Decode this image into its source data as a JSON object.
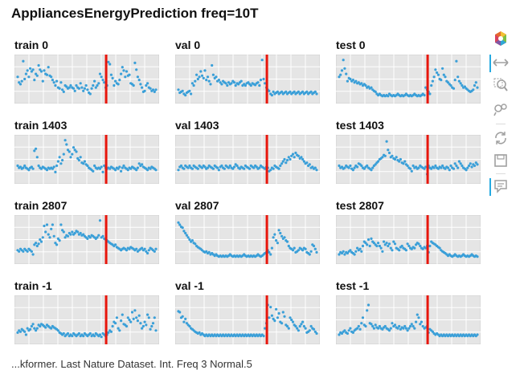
{
  "title": "AppliancesEnergyPrediction freq=10T",
  "caption": "...kformer. Last Nature Dataset. Int. Freq 3 Normal.5",
  "colors": {
    "plot_background": "#e5e5e5",
    "grid": "#ffffff",
    "points": "#3a9fd8",
    "divider": "#e8160c",
    "toolbar_icon": "#a0a0a0",
    "toolbar_active": "#26aae1"
  },
  "toolbar": {
    "tools": [
      {
        "name": "bokeh-logo-icon",
        "active": false
      },
      {
        "name": "pan-icon",
        "active": true
      },
      {
        "name": "box-zoom-icon",
        "active": false
      },
      {
        "name": "wheel-zoom-icon",
        "active": false
      },
      {
        "name": "reset-icon",
        "active": false
      },
      {
        "name": "save-icon",
        "active": false
      },
      {
        "name": "hover-icon",
        "active": true
      }
    ]
  },
  "chart_data": [
    {
      "type": "scatter",
      "title": "train 0",
      "x_min": 0,
      "x_max": 100,
      "y_min": 0,
      "y_max": 1,
      "split_x": 64,
      "series_points": [
        0.55,
        0.42,
        0.38,
        0.45,
        0.92,
        0.5,
        0.62,
        0.7,
        0.55,
        0.75,
        0.68,
        0.72,
        0.48,
        0.62,
        0.58,
        0.82,
        0.72,
        0.68,
        0.45,
        0.7,
        0.62,
        0.6,
        0.78,
        0.58,
        0.55,
        0.48,
        0.42,
        0.35,
        0.45,
        0.3,
        0.28,
        0.42,
        0.25,
        0.2,
        0.35,
        0.32,
        0.28,
        0.3,
        0.35,
        0.3,
        0.28,
        0.22,
        0.35,
        0.3,
        0.28,
        0.4,
        0.3,
        0.22,
        0.28,
        0.35,
        0.25,
        0.18,
        0.15,
        0.28,
        0.35,
        0.45,
        0.3,
        0.35,
        0.4,
        0.62,
        0.55,
        0.48,
        0.42,
        0.3,
        0.35,
        0.9,
        0.85,
        0.6,
        0.52,
        0.35,
        0.45,
        0.4,
        0.38,
        0.48,
        0.62,
        0.78,
        0.7,
        0.55,
        0.68,
        0.58,
        0.6,
        0.4,
        0.38,
        0.35,
        0.88,
        0.72,
        0.55,
        0.48,
        0.38,
        0.3,
        0.2,
        0.22,
        0.35,
        0.4,
        0.3,
        0.28,
        0.22,
        0.25,
        0.2,
        0.25
      ]
    },
    {
      "type": "scatter",
      "title": "val 0",
      "x_min": 0,
      "x_max": 100,
      "y_min": 0,
      "y_max": 1,
      "split_x": 64,
      "series_points": [
        0.25,
        0.18,
        0.2,
        0.22,
        0.15,
        0.12,
        0.18,
        0.2,
        0.22,
        0.15,
        0.4,
        0.35,
        0.45,
        0.6,
        0.5,
        0.55,
        0.68,
        0.58,
        0.52,
        0.7,
        0.48,
        0.55,
        0.45,
        0.38,
        0.82,
        0.6,
        0.52,
        0.55,
        0.45,
        0.48,
        0.42,
        0.38,
        0.45,
        0.42,
        0.4,
        0.35,
        0.42,
        0.38,
        0.4,
        0.45,
        0.42,
        0.35,
        0.4,
        0.38,
        0.42,
        0.45,
        0.35,
        0.38,
        0.35,
        0.4,
        0.42,
        0.38,
        0.35,
        0.4,
        0.38,
        0.36,
        0.4,
        0.42,
        0.35,
        0.48,
        0.95,
        0.5,
        0.4,
        0.3,
        0.25,
        0.22,
        0.15,
        0.12,
        0.2,
        0.15,
        0.18,
        0.2,
        0.15,
        0.18,
        0.2,
        0.15,
        0.18,
        0.2,
        0.15,
        0.18,
        0.2,
        0.15,
        0.18,
        0.2,
        0.15,
        0.18,
        0.2,
        0.15,
        0.18,
        0.2,
        0.15,
        0.18,
        0.2,
        0.15,
        0.18,
        0.2,
        0.15,
        0.18,
        0.2,
        0.15
      ]
    },
    {
      "type": "scatter",
      "title": "test 0",
      "x_min": 0,
      "x_max": 100,
      "y_min": 0,
      "y_max": 1,
      "split_x": 64,
      "series_points": [
        0.55,
        0.6,
        0.7,
        0.95,
        0.75,
        0.62,
        0.45,
        0.52,
        0.5,
        0.45,
        0.48,
        0.42,
        0.45,
        0.4,
        0.42,
        0.38,
        0.4,
        0.35,
        0.38,
        0.35,
        0.3,
        0.32,
        0.28,
        0.3,
        0.25,
        0.22,
        0.2,
        0.15,
        0.12,
        0.15,
        0.12,
        0.1,
        0.12,
        0.1,
        0.12,
        0.1,
        0.15,
        0.12,
        0.1,
        0.12,
        0.1,
        0.12,
        0.15,
        0.12,
        0.1,
        0.12,
        0.1,
        0.12,
        0.15,
        0.12,
        0.1,
        0.12,
        0.1,
        0.12,
        0.15,
        0.12,
        0.1,
        0.12,
        0.1,
        0.12,
        0.15,
        0.12,
        0.3,
        0.25,
        0.2,
        0.15,
        0.35,
        0.45,
        0.55,
        0.72,
        0.65,
        0.6,
        0.5,
        0.48,
        0.75,
        0.6,
        0.55,
        0.45,
        0.42,
        0.38,
        0.35,
        0.3,
        0.28,
        0.48,
        0.92,
        0.55,
        0.45,
        0.4,
        0.35,
        0.3,
        0.32,
        0.28,
        0.25,
        0.22,
        0.2,
        0.22,
        0.25,
        0.35,
        0.42,
        0.3
      ]
    },
    {
      "type": "scatter",
      "title": "train 1403",
      "x_min": 0,
      "x_max": 100,
      "y_min": 0,
      "y_max": 1,
      "split_x": 64,
      "series_points": [
        0.35,
        0.3,
        0.32,
        0.28,
        0.3,
        0.35,
        0.3,
        0.28,
        0.25,
        0.3,
        0.32,
        0.28,
        0.7,
        0.75,
        0.55,
        0.35,
        0.3,
        0.28,
        0.32,
        0.3,
        0.28,
        0.25,
        0.3,
        0.28,
        0.3,
        0.28,
        0.32,
        0.2,
        0.35,
        0.45,
        0.55,
        0.4,
        0.48,
        0.62,
        0.95,
        0.85,
        0.72,
        0.68,
        0.55,
        0.62,
        0.78,
        0.72,
        0.68,
        0.52,
        0.48,
        0.55,
        0.42,
        0.4,
        0.45,
        0.38,
        0.35,
        0.3,
        0.28,
        0.25,
        0.22,
        0.35,
        0.3,
        0.28,
        0.3,
        0.28,
        0.32,
        0.2,
        0.35,
        0.3,
        0.28,
        0.3,
        0.28,
        0.32,
        0.3,
        0.28,
        0.25,
        0.3,
        0.28,
        0.32,
        0.22,
        0.3,
        0.35,
        0.3,
        0.28,
        0.25,
        0.3,
        0.28,
        0.32,
        0.3,
        0.28,
        0.25,
        0.3,
        0.4,
        0.35,
        0.38,
        0.32,
        0.3,
        0.28,
        0.25,
        0.3,
        0.28,
        0.32,
        0.3,
        0.28,
        0.25
      ]
    },
    {
      "type": "scatter",
      "title": "val 1403",
      "x_min": 0,
      "x_max": 100,
      "y_min": 0,
      "y_max": 1,
      "split_x": 64,
      "series_points": [
        0.25,
        0.32,
        0.35,
        0.3,
        0.28,
        0.35,
        0.32,
        0.3,
        0.35,
        0.3,
        0.28,
        0.35,
        0.32,
        0.3,
        0.28,
        0.35,
        0.32,
        0.3,
        0.35,
        0.32,
        0.28,
        0.3,
        0.35,
        0.32,
        0.3,
        0.28,
        0.35,
        0.32,
        0.3,
        0.25,
        0.32,
        0.35,
        0.3,
        0.28,
        0.35,
        0.32,
        0.3,
        0.35,
        0.3,
        0.28,
        0.32,
        0.38,
        0.35,
        0.3,
        0.28,
        0.32,
        0.3,
        0.28,
        0.35,
        0.32,
        0.3,
        0.28,
        0.35,
        0.32,
        0.3,
        0.35,
        0.32,
        0.28,
        0.3,
        0.35,
        0.32,
        0.3,
        0.28,
        0.32,
        0.3,
        0.22,
        0.25,
        0.3,
        0.28,
        0.35,
        0.32,
        0.3,
        0.28,
        0.35,
        0.4,
        0.45,
        0.5,
        0.42,
        0.48,
        0.55,
        0.5,
        0.58,
        0.62,
        0.55,
        0.65,
        0.6,
        0.58,
        0.52,
        0.55,
        0.5,
        0.45,
        0.4,
        0.42,
        0.35,
        0.38,
        0.3,
        0.32,
        0.28,
        0.3,
        0.25
      ]
    },
    {
      "type": "scatter",
      "title": "test 1403",
      "x_min": 0,
      "x_max": 100,
      "y_min": 0,
      "y_max": 1,
      "split_x": 64,
      "series_points": [
        0.35,
        0.3,
        0.32,
        0.28,
        0.3,
        0.35,
        0.32,
        0.3,
        0.35,
        0.28,
        0.25,
        0.3,
        0.35,
        0.32,
        0.4,
        0.38,
        0.35,
        0.3,
        0.28,
        0.32,
        0.35,
        0.3,
        0.28,
        0.25,
        0.3,
        0.35,
        0.38,
        0.42,
        0.45,
        0.5,
        0.52,
        0.55,
        0.6,
        0.58,
        0.92,
        0.72,
        0.65,
        0.55,
        0.58,
        0.52,
        0.5,
        0.55,
        0.48,
        0.45,
        0.5,
        0.42,
        0.4,
        0.45,
        0.38,
        0.35,
        0.3,
        0.28,
        0.22,
        0.35,
        0.3,
        0.32,
        0.28,
        0.3,
        0.35,
        0.32,
        0.3,
        0.28,
        0.32,
        0.15,
        0.35,
        0.3,
        0.28,
        0.32,
        0.3,
        0.35,
        0.3,
        0.28,
        0.32,
        0.3,
        0.35,
        0.3,
        0.28,
        0.32,
        0.3,
        0.25,
        0.35,
        0.3,
        0.28,
        0.4,
        0.35,
        0.3,
        0.45,
        0.4,
        0.35,
        0.3,
        0.28,
        0.25,
        0.3,
        0.35,
        0.4,
        0.32,
        0.38,
        0.35,
        0.42,
        0.38
      ]
    },
    {
      "type": "scatter",
      "title": "train 2807",
      "x_min": 0,
      "x_max": 100,
      "y_min": 0,
      "y_max": 1,
      "split_x": 64,
      "series_points": [
        0.25,
        0.22,
        0.28,
        0.25,
        0.22,
        0.28,
        0.25,
        0.22,
        0.28,
        0.25,
        0.22,
        0.15,
        0.38,
        0.42,
        0.35,
        0.4,
        0.5,
        0.45,
        0.55,
        0.82,
        0.68,
        0.85,
        0.62,
        0.55,
        0.75,
        0.85,
        0.58,
        0.42,
        0.38,
        0.52,
        0.48,
        0.85,
        0.72,
        0.68,
        0.55,
        0.6,
        0.58,
        0.65,
        0.62,
        0.68,
        0.62,
        0.65,
        0.7,
        0.68,
        0.62,
        0.65,
        0.6,
        0.62,
        0.58,
        0.55,
        0.52,
        0.58,
        0.55,
        0.6,
        0.58,
        0.55,
        0.52,
        0.55,
        0.6,
        0.95,
        0.55,
        0.58,
        0.52,
        0.5,
        0.48,
        0.45,
        0.42,
        0.4,
        0.38,
        0.35,
        0.38,
        0.32,
        0.3,
        0.28,
        0.25,
        0.28,
        0.3,
        0.28,
        0.25,
        0.3,
        0.28,
        0.32,
        0.3,
        0.28,
        0.25,
        0.28,
        0.22,
        0.25,
        0.28,
        0.3,
        0.25,
        0.28,
        0.22,
        0.18,
        0.25,
        0.3,
        0.28,
        0.25,
        0.22,
        0.28
      ]
    },
    {
      "type": "scatter",
      "title": "val 2807",
      "x_min": 0,
      "x_max": 100,
      "y_min": 0,
      "y_max": 1,
      "split_x": 64,
      "series_points": [
        0.9,
        0.85,
        0.8,
        0.78,
        0.7,
        0.65,
        0.6,
        0.55,
        0.5,
        0.45,
        0.48,
        0.42,
        0.4,
        0.35,
        0.32,
        0.3,
        0.28,
        0.25,
        0.22,
        0.2,
        0.22,
        0.18,
        0.2,
        0.15,
        0.18,
        0.15,
        0.12,
        0.15,
        0.12,
        0.1,
        0.12,
        0.1,
        0.12,
        0.1,
        0.12,
        0.1,
        0.12,
        0.15,
        0.12,
        0.1,
        0.12,
        0.1,
        0.12,
        0.1,
        0.12,
        0.1,
        0.12,
        0.15,
        0.12,
        0.1,
        0.12,
        0.1,
        0.12,
        0.1,
        0.12,
        0.1,
        0.12,
        0.15,
        0.12,
        0.1,
        0.12,
        0.15,
        0.18,
        0.2,
        0.25,
        0.2,
        0.15,
        0.3,
        0.55,
        0.62,
        0.48,
        0.42,
        0.72,
        0.65,
        0.58,
        0.52,
        0.55,
        0.48,
        0.45,
        0.35,
        0.3,
        0.28,
        0.25,
        0.3,
        0.2,
        0.22,
        0.25,
        0.3,
        0.28,
        0.25,
        0.3,
        0.28,
        0.2,
        0.18,
        0.15,
        0.22,
        0.38,
        0.35,
        0.28,
        0.2
      ]
    },
    {
      "type": "scatter",
      "title": "test 2807",
      "x_min": 0,
      "x_max": 100,
      "y_min": 0,
      "y_max": 1,
      "split_x": 64,
      "series_points": [
        0.15,
        0.2,
        0.18,
        0.22,
        0.15,
        0.2,
        0.18,
        0.22,
        0.25,
        0.2,
        0.18,
        0.15,
        0.22,
        0.3,
        0.25,
        0.28,
        0.22,
        0.35,
        0.45,
        0.42,
        0.38,
        0.5,
        0.35,
        0.52,
        0.45,
        0.42,
        0.38,
        0.35,
        0.42,
        0.35,
        0.3,
        0.22,
        0.45,
        0.38,
        0.42,
        0.35,
        0.4,
        0.3,
        0.25,
        0.45,
        0.4,
        0.3,
        0.28,
        0.25,
        0.32,
        0.35,
        0.3,
        0.28,
        0.25,
        0.4,
        0.35,
        0.3,
        0.28,
        0.32,
        0.3,
        0.38,
        0.42,
        0.4,
        0.35,
        0.3,
        0.28,
        0.32,
        0.3,
        0.35,
        0.2,
        0.35,
        0.45,
        0.42,
        0.4,
        0.38,
        0.35,
        0.32,
        0.3,
        0.25,
        0.22,
        0.2,
        0.18,
        0.15,
        0.12,
        0.15,
        0.12,
        0.1,
        0.12,
        0.15,
        0.12,
        0.1,
        0.12,
        0.1,
        0.12,
        0.15,
        0.12,
        0.1,
        0.12,
        0.1,
        0.12,
        0.15,
        0.12,
        0.1,
        0.12,
        0.1
      ]
    },
    {
      "type": "scatter",
      "title": "train -1",
      "x_min": 0,
      "x_max": 100,
      "y_min": 0,
      "y_max": 1,
      "split_x": 64,
      "series_points": [
        0.2,
        0.25,
        0.22,
        0.28,
        0.25,
        0.22,
        0.15,
        0.3,
        0.25,
        0.28,
        0.35,
        0.4,
        0.3,
        0.25,
        0.3,
        0.38,
        0.35,
        0.4,
        0.38,
        0.35,
        0.32,
        0.38,
        0.35,
        0.32,
        0.3,
        0.35,
        0.32,
        0.3,
        0.28,
        0.25,
        0.2,
        0.18,
        0.15,
        0.18,
        0.12,
        0.15,
        0.18,
        0.12,
        0.15,
        0.12,
        0.18,
        0.15,
        0.12,
        0.15,
        0.18,
        0.12,
        0.15,
        0.12,
        0.18,
        0.15,
        0.12,
        0.15,
        0.18,
        0.12,
        0.15,
        0.12,
        0.18,
        0.15,
        0.12,
        0.15,
        0.1,
        0.18,
        0.15,
        0.12,
        0.15,
        0.2,
        0.25,
        0.22,
        0.35,
        0.45,
        0.42,
        0.55,
        0.3,
        0.25,
        0.48,
        0.62,
        0.4,
        0.38,
        0.35,
        0.55,
        0.5,
        0.45,
        0.68,
        0.52,
        0.72,
        0.55,
        0.48,
        0.6,
        0.42,
        0.3,
        0.35,
        0.45,
        0.38,
        0.62,
        0.55,
        0.28,
        0.35,
        0.42,
        0.55,
        0.25
      ]
    },
    {
      "type": "scatter",
      "title": "val -1",
      "x_min": 0,
      "x_max": 100,
      "y_min": 0,
      "y_max": 1,
      "split_x": 64,
      "series_points": [
        0.7,
        0.68,
        0.55,
        0.58,
        0.45,
        0.52,
        0.42,
        0.38,
        0.35,
        0.3,
        0.28,
        0.25,
        0.22,
        0.2,
        0.18,
        0.2,
        0.15,
        0.18,
        0.15,
        0.12,
        0.15,
        0.12,
        0.15,
        0.12,
        0.15,
        0.12,
        0.15,
        0.12,
        0.15,
        0.12,
        0.15,
        0.12,
        0.15,
        0.12,
        0.15,
        0.12,
        0.15,
        0.12,
        0.15,
        0.12,
        0.15,
        0.12,
        0.15,
        0.12,
        0.15,
        0.12,
        0.15,
        0.12,
        0.15,
        0.12,
        0.15,
        0.12,
        0.15,
        0.12,
        0.15,
        0.12,
        0.15,
        0.12,
        0.15,
        0.12,
        0.15,
        0.12,
        0.3,
        0.42,
        0.85,
        0.55,
        0.8,
        0.6,
        0.52,
        0.48,
        0.75,
        0.55,
        0.65,
        0.45,
        0.42,
        0.68,
        0.58,
        0.38,
        0.35,
        0.3,
        0.55,
        0.5,
        0.45,
        0.38,
        0.35,
        0.3,
        0.25,
        0.35,
        0.4,
        0.45,
        0.35,
        0.3,
        0.2,
        0.22,
        0.25,
        0.35,
        0.3,
        0.28,
        0.22,
        0.18
      ]
    },
    {
      "type": "scatter",
      "title": "test -1",
      "x_min": 0,
      "x_max": 100,
      "y_min": 0,
      "y_max": 1,
      "split_x": 64,
      "series_points": [
        0.15,
        0.2,
        0.18,
        0.22,
        0.25,
        0.2,
        0.18,
        0.25,
        0.3,
        0.22,
        0.2,
        0.25,
        0.28,
        0.3,
        0.35,
        0.28,
        0.42,
        0.55,
        0.38,
        0.35,
        0.72,
        0.85,
        0.42,
        0.4,
        0.35,
        0.3,
        0.38,
        0.32,
        0.3,
        0.35,
        0.3,
        0.28,
        0.32,
        0.35,
        0.3,
        0.28,
        0.25,
        0.3,
        0.42,
        0.35,
        0.38,
        0.32,
        0.3,
        0.35,
        0.28,
        0.32,
        0.3,
        0.35,
        0.3,
        0.25,
        0.3,
        0.35,
        0.4,
        0.35,
        0.3,
        0.45,
        0.62,
        0.55,
        0.4,
        0.45,
        0.35,
        0.3,
        0.32,
        0.35,
        0.2,
        0.28,
        0.25,
        0.22,
        0.18,
        0.15,
        0.18,
        0.15,
        0.12,
        0.15,
        0.12,
        0.15,
        0.12,
        0.15,
        0.12,
        0.15,
        0.12,
        0.15,
        0.12,
        0.15,
        0.12,
        0.15,
        0.12,
        0.15,
        0.12,
        0.15,
        0.12,
        0.15,
        0.12,
        0.15,
        0.12,
        0.15,
        0.12,
        0.15,
        0.12,
        0.15
      ]
    }
  ]
}
